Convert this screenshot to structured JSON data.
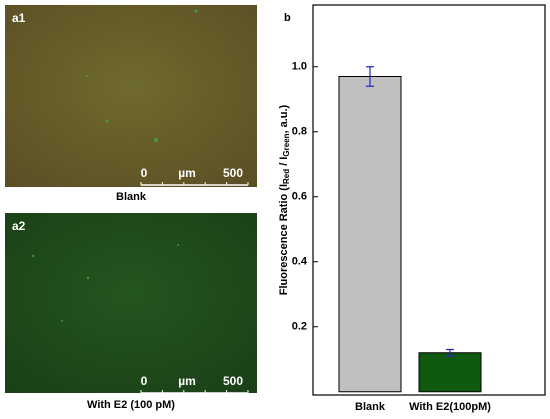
{
  "figure": {
    "panels": [
      {
        "label": "a1",
        "caption": "Blank",
        "scale_bar": [
          "0",
          "µm",
          "500"
        ]
      },
      {
        "label": "a2",
        "caption": "With E2 (100 pM)",
        "scale_bar": [
          "0",
          "µm",
          "500"
        ]
      }
    ]
  },
  "chart_data": {
    "type": "bar",
    "panel_label": "b",
    "ylabel_parts": [
      "Fluorescence Ratio (I",
      "Red",
      " / I",
      "Green",
      ", a.u.)"
    ],
    "categories": [
      "Blank",
      "With E2(100pM)"
    ],
    "values": [
      0.97,
      0.12
    ],
    "errors": [
      0.03,
      0.01
    ],
    "colors": [
      "#c0c0c0",
      "#0f5a0f"
    ],
    "error_color": "#2222cc",
    "ylim": [
      -0.01,
      1.19
    ],
    "yticks": [
      0.2,
      0.4,
      0.6,
      0.8,
      {
        "value": 1,
        "label": "1.0"
      }
    ]
  }
}
